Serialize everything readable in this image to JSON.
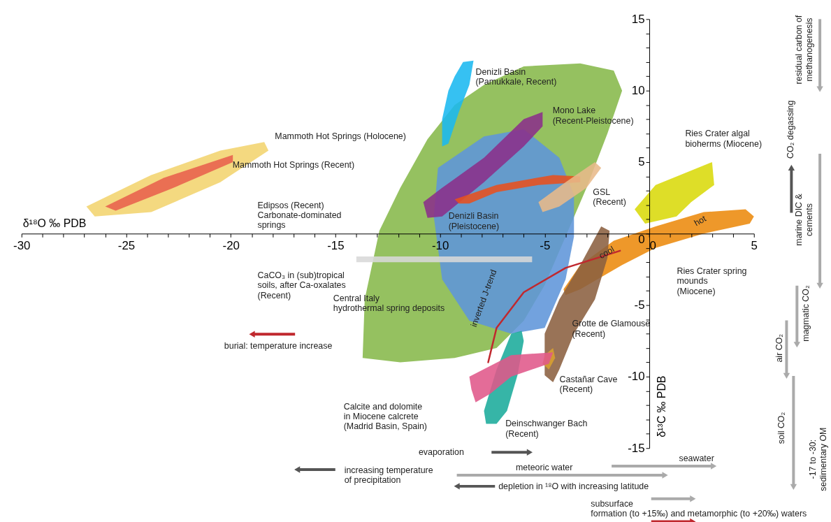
{
  "chart_data": {
    "type": "area",
    "xlabel": "δ¹⁸O ‰ PDB",
    "ylabel": "δ¹³C ‰ PDB",
    "xlim": [
      -30,
      5
    ],
    "ylim": [
      -15,
      15
    ],
    "xticks": [
      -30,
      {
        "value": -29,
        "label": null
      },
      {
        "value": -28,
        "label": null
      },
      {
        "value": -27,
        "label": null
      },
      {
        "value": -26,
        "label": null
      },
      -25,
      {
        "value": -24,
        "label": null
      },
      {
        "value": -23,
        "label": null
      },
      {
        "value": -22,
        "label": null
      },
      {
        "value": -21,
        "label": null
      },
      -20,
      {
        "value": -19,
        "label": null
      },
      {
        "value": -18,
        "label": null
      },
      {
        "value": -17,
        "label": null
      },
      {
        "value": -16,
        "label": null
      },
      -15,
      {
        "value": -14,
        "label": null
      },
      {
        "value": -13,
        "label": null
      },
      {
        "value": -12,
        "label": null
      },
      {
        "value": -11,
        "label": null
      },
      -10,
      {
        "value": -9,
        "label": null
      },
      {
        "value": -8,
        "label": null
      },
      {
        "value": -7,
        "label": null
      },
      {
        "value": -6,
        "label": null
      },
      -5,
      {
        "value": -4,
        "label": null
      },
      {
        "value": -3,
        "label": null
      },
      {
        "value": -2,
        "label": null
      },
      {
        "value": -1,
        "label": null
      },
      0,
      {
        "value": 1,
        "label": null
      },
      {
        "value": 2,
        "label": null
      },
      {
        "value": 3,
        "label": null
      },
      {
        "value": 4,
        "label": null
      },
      5
    ],
    "yticks": [
      -15,
      {
        "value": -14,
        "label": null
      },
      {
        "value": -13,
        "label": null
      },
      {
        "value": -12,
        "label": null
      },
      {
        "value": -11,
        "label": null
      },
      -10,
      {
        "value": -9,
        "label": null
      },
      {
        "value": -8,
        "label": null
      },
      {
        "value": -7,
        "label": null
      },
      {
        "value": -6,
        "label": null
      },
      -5,
      {
        "value": -4,
        "label": null
      },
      {
        "value": -3,
        "label": null
      },
      {
        "value": -2,
        "label": null
      },
      {
        "value": -1,
        "label": null
      },
      0,
      {
        "value": 1,
        "label": null
      },
      {
        "value": 2,
        "label": null
      },
      {
        "value": 3,
        "label": null
      },
      {
        "value": 4,
        "label": null
      },
      5,
      {
        "value": 6,
        "label": null
      },
      {
        "value": 7,
        "label": null
      },
      {
        "value": 8,
        "label": null
      },
      {
        "value": 9,
        "label": null
      },
      10,
      {
        "value": 11,
        "label": null
      },
      {
        "value": 12,
        "label": null
      },
      {
        "value": 13,
        "label": null
      },
      {
        "value": 14,
        "label": null
      },
      15
    ],
    "grid": false,
    "series": [
      {
        "color": "#f3d46e",
        "x": [
          -26.9,
          -23.8,
          -20.5,
          -18.4,
          -18.2,
          -20.5,
          -23.8,
          -26.5
        ],
        "values": [
          1.9,
          4.1,
          5.8,
          6.4,
          5.8,
          3.6,
          1.5,
          1.2
        ]
      },
      {
        "color": "#e8604c",
        "x": [
          -26.0,
          -23.2,
          -19.9,
          -19.9,
          -22.9,
          -25.5
        ],
        "values": [
          1.9,
          3.9,
          5.5,
          5.0,
          3.1,
          1.6
        ]
      },
      {
        "color": "#86b84a",
        "x": [
          -13.7,
          -13.6,
          -12.9,
          -11.9,
          -10.6,
          -9.3,
          -7.9,
          -6.0,
          -3.3,
          -1.7,
          -1.3,
          -2.0,
          -3.0,
          -4.0,
          -5.0,
          -6.0,
          -7.3,
          -9.3,
          -11.9
        ],
        "values": [
          -8.7,
          -4.6,
          0.2,
          3.2,
          6.6,
          9.0,
          10.4,
          11.7,
          11.9,
          11.4,
          10.0,
          7.0,
          3.2,
          -0.2,
          -3.6,
          -6.1,
          -8.0,
          -8.7,
          -9.0
        ]
      },
      {
        "color": "#5e95d9",
        "x": [
          -10.1,
          -7.9,
          -6.0,
          -4.3,
          -3.6,
          -3.6,
          -4.0,
          -5.0,
          -6.6,
          -8.6,
          -9.9,
          -10.3
        ],
        "values": [
          4.6,
          6.8,
          7.3,
          5.3,
          2.7,
          -0.2,
          -3.2,
          -6.6,
          -7.0,
          -6.1,
          -3.2,
          1.2
        ]
      },
      {
        "color": "#1ab8f0",
        "x": [
          -8.9,
          -8.4,
          -8.6,
          -9.1,
          -9.6,
          -9.9,
          -9.9,
          -9.6,
          -9.3
        ],
        "values": [
          12.0,
          12.1,
          10.4,
          8.5,
          6.3,
          6.1,
          8.0,
          10.0,
          11.0
        ]
      },
      {
        "color": "#8b2f8a",
        "x": [
          -10.8,
          -9.9,
          -7.9,
          -6.0,
          -5.1,
          -5.1,
          -6.0,
          -7.9,
          -9.9,
          -10.6
        ],
        "values": [
          2.2,
          3.2,
          5.3,
          8.0,
          8.5,
          7.5,
          6.1,
          3.6,
          1.2,
          1.1
        ]
      },
      {
        "color": "#e8501e",
        "x": [
          -9.3,
          -7.3,
          -4.6,
          -3.3,
          -3.3,
          -5.3,
          -7.3,
          -8.6,
          -9.1
        ],
        "values": [
          2.4,
          3.4,
          4.1,
          4.0,
          3.6,
          3.4,
          2.9,
          2.1,
          2.1
        ]
      },
      {
        "color": "#e8b98a",
        "x": [
          -5.3,
          -4.0,
          -2.6,
          -2.3,
          -3.0,
          -4.3,
          -5.1
        ],
        "values": [
          2.2,
          3.6,
          5.0,
          4.6,
          3.2,
          1.9,
          1.5
        ]
      },
      {
        "color": "#d9d90a",
        "x": [
          -0.7,
          0.3,
          3.0,
          3.1,
          2.0,
          1.3,
          -0.2
        ],
        "values": [
          1.7,
          3.4,
          5.0,
          3.4,
          2.2,
          1.2,
          0.7
        ]
      },
      {
        "color": "#ec8a0c",
        "x": [
          -4.1,
          -3.3,
          -1.7,
          0.3,
          2.6,
          4.6,
          5.0,
          4.8,
          2.6,
          0.3,
          -1.3,
          -3.3,
          -4.0
        ],
        "values": [
          -3.9,
          -2.2,
          -0.5,
          0.5,
          1.5,
          1.7,
          1.2,
          0.7,
          0.0,
          -1.0,
          -2.2,
          -3.9,
          -4.3
        ]
      },
      {
        "color": "#8b6040",
        "x": [
          -2.3,
          -1.9,
          -2.0,
          -2.6,
          -3.6,
          -4.3,
          -4.6,
          -5.0,
          -5.0,
          -4.3,
          -3.3
        ],
        "values": [
          0.5,
          0.2,
          -1.7,
          -4.6,
          -7.0,
          -9.5,
          -10.4,
          -9.9,
          -7.0,
          -4.6,
          -2.2
        ]
      },
      {
        "color": "#d8a030",
        "x": [
          -5.0,
          -4.6,
          -4.5,
          -4.8,
          -5.1
        ],
        "values": [
          -8.5,
          -8.0,
          -8.7,
          -9.5,
          -9.1
        ]
      },
      {
        "color": "#1aab9b",
        "x": [
          -6.6,
          -6.1,
          -6.0,
          -6.3,
          -6.8,
          -7.3,
          -7.8,
          -7.9,
          -7.3
        ],
        "values": [
          -7.0,
          -6.8,
          -7.5,
          -9.9,
          -12.4,
          -13.3,
          -13.3,
          -12.4,
          -9.5
        ]
      },
      {
        "color": "#e0588a",
        "x": [
          -8.6,
          -6.6,
          -4.6,
          -4.8,
          -6.6,
          -7.6,
          -8.3,
          -8.5
        ],
        "values": [
          -10.0,
          -8.5,
          -8.3,
          -9.1,
          -10.0,
          -11.2,
          -11.8,
          -10.9
        ]
      },
      {
        "color": "#d8d8d8",
        "x": [
          -14.0,
          -5.6,
          -5.6,
          -14.0
        ],
        "values": [
          -1.6,
          -1.6,
          -2.0,
          -2.0
        ]
      },
      {
        "type": "line",
        "color": "#c0282e",
        "x": [
          -1.4,
          -4.0,
          -6.0,
          -7.3,
          -7.7
        ],
        "values": [
          -1.2,
          -2.4,
          -4.1,
          -6.6,
          -9.0
        ]
      }
    ],
    "annotations": [
      "Denizli Basin\n(Pamukkale, Recent)",
      "Mono Lake\n(Recent-Pleistocene)",
      "Mammoth Hot Springs (Holocene)",
      "Mammoth Hot Springs (Recent)",
      "Ries Crater algal\nbioherms (Miocene)",
      "GSL\n(Recent)",
      "Edipsos (Recent)\nCarbonate-dominated\nsprings",
      "Denizli Basin\n(Pleistocene)",
      "CaCO₃ in (sub)tropical\nsoils, after Ca-oxalates\n(Recent)",
      "Ries Crater spring\nmounds\n(Miocene)",
      "Central Italy\nhydrothermal spring deposits",
      "Grotte de Glamouse\n(Recent)",
      "Castañar Cave\n(Recent)",
      "Calcite and dolomite\nin Miocene calcrete\n(Madrid Basin, Spain)",
      "Deinschwanger Bach\n(Recent)",
      "inverted J-trend",
      "cool",
      "hot",
      "burial: temperature increase",
      "evaporation",
      "increasing temperature\nof precipitation",
      "meteoric water",
      "seawater",
      "depletion in ¹⁸O with increasing latitude",
      "subsurface\nformation (to +15‰) and metamorphic (to +20‰) waters",
      "residual carbon of\nmethanogenesis",
      "CO₂ degassing",
      "marine DIC &\ncements",
      "magmatic CO₂",
      "air CO₂",
      "soil CO₂",
      "-17 to -30:\nsedimentary OM"
    ]
  }
}
